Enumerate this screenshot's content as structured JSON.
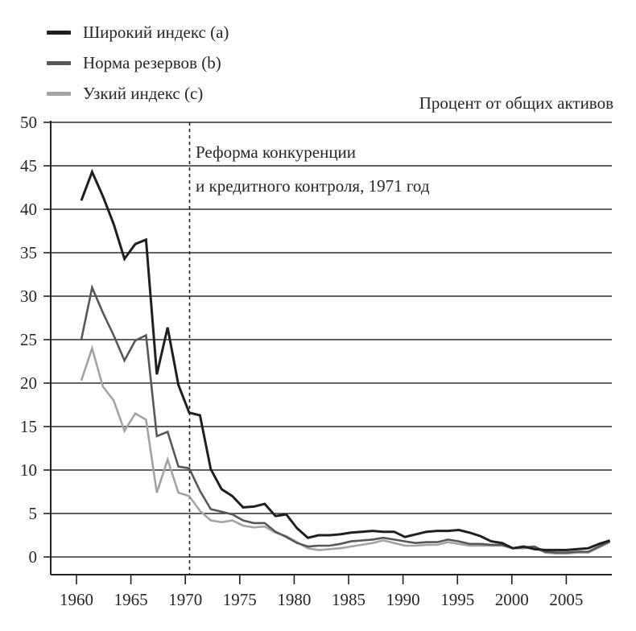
{
  "legend": {
    "items": [
      {
        "key": "broad",
        "label": "Широкий индекс (a)",
        "color": "#1f1f1f"
      },
      {
        "key": "reserve",
        "label": "Норма резервов (b)",
        "color": "#575757"
      },
      {
        "key": "narrow",
        "label": "Узкий индекс (c)",
        "color": "#a3a3a3"
      }
    ]
  },
  "chart_data": {
    "type": "line",
    "title": "Процент от общих активов",
    "annotation": {
      "line1": "Реформа конкуренции",
      "line2": "и кредитного контроля, 1971 год",
      "marker": "dashed-vertical-line",
      "marker_year": 1971
    },
    "grid": "horizontal",
    "legend_position": "top-left",
    "ylim": [
      0,
      50
    ],
    "y_ticks": [
      0,
      5,
      10,
      15,
      20,
      25,
      30,
      35,
      40,
      45,
      50
    ],
    "x_ticks": [
      1960,
      1965,
      1970,
      1975,
      1980,
      1985,
      1990,
      1995,
      2000,
      2005
    ],
    "x": [
      1960,
      1961,
      1962,
      1963,
      1964,
      1965,
      1966,
      1967,
      1968,
      1969,
      1970,
      1971,
      1972,
      1973,
      1974,
      1975,
      1976,
      1977,
      1978,
      1979,
      1980,
      1981,
      1982,
      1983,
      1984,
      1985,
      1986,
      1987,
      1988,
      1989,
      1990,
      1991,
      1992,
      1993,
      1994,
      1995,
      1996,
      1997,
      1998,
      1999,
      2000,
      2001,
      2002,
      2003,
      2004,
      2005,
      2006,
      2007,
      2008,
      2009
    ],
    "series": [
      {
        "name": "Широкий индекс (a)",
        "key": "broad",
        "color": "#1f1f1f",
        "values": [
          41.0,
          44.3,
          41.5,
          38.3,
          34.3,
          36.0,
          36.5,
          21.0,
          26.4,
          19.8,
          16.6,
          16.3,
          10.1,
          7.8,
          7.0,
          5.7,
          5.8,
          6.1,
          4.7,
          4.9,
          3.3,
          2.2,
          2.5,
          2.5,
          2.6,
          2.8,
          2.9,
          3.0,
          2.9,
          2.9,
          2.3,
          2.6,
          2.9,
          3.0,
          3.0,
          3.1,
          2.8,
          2.4,
          1.8,
          1.6,
          1.0,
          1.2,
          0.9,
          0.8,
          0.8,
          0.8,
          0.9,
          1.0,
          1.5,
          1.9
        ]
      },
      {
        "name": "Норма резервов (b)",
        "key": "reserve",
        "color": "#575757",
        "values": [
          25.0,
          31.0,
          28.1,
          25.5,
          22.6,
          24.9,
          25.5,
          13.9,
          14.4,
          10.4,
          10.2,
          7.6,
          5.5,
          5.2,
          4.9,
          4.2,
          3.9,
          3.9,
          2.9,
          2.3,
          1.6,
          1.2,
          1.3,
          1.3,
          1.5,
          1.8,
          1.9,
          2.0,
          2.2,
          2.0,
          1.8,
          1.6,
          1.7,
          1.7,
          2.0,
          1.8,
          1.5,
          1.5,
          1.4,
          1.4,
          1.0,
          1.1,
          1.2,
          0.6,
          0.5,
          0.5,
          0.6,
          0.6,
          1.2,
          1.8
        ]
      },
      {
        "name": "Узкий индекс (c)",
        "key": "narrow",
        "color": "#a3a3a3",
        "values": [
          20.3,
          24.0,
          19.6,
          18.0,
          14.5,
          16.5,
          15.8,
          7.4,
          11.2,
          7.4,
          7.0,
          5.3,
          4.2,
          4.0,
          4.2,
          3.6,
          3.4,
          3.5,
          2.8,
          2.4,
          1.7,
          1.0,
          0.8,
          0.9,
          1.0,
          1.2,
          1.4,
          1.6,
          1.9,
          1.6,
          1.3,
          1.3,
          1.4,
          1.4,
          1.7,
          1.5,
          1.3,
          1.3,
          1.3,
          1.3,
          1.0,
          1.0,
          1.1,
          0.5,
          0.4,
          0.4,
          0.5,
          0.5,
          1.1,
          1.7
        ]
      }
    ]
  }
}
